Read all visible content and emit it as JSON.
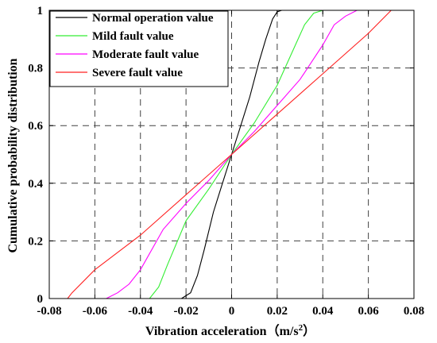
{
  "chart_data": {
    "type": "line",
    "title": "",
    "xlabel": "Vibration acceleration（m/s",
    "xlabel_sup": "2",
    "xlabel_close": "）",
    "ylabel": "Cumulative probability distribution",
    "xlim": [
      -0.08,
      0.08
    ],
    "ylim": [
      0,
      1
    ],
    "xticks": [
      -0.08,
      -0.06,
      -0.04,
      -0.02,
      0,
      0.02,
      0.04,
      0.06,
      0.08
    ],
    "xtick_labels": [
      "-0.08",
      "-0.06",
      "-0.04",
      "-0.02",
      "0",
      "0.02",
      "0.04",
      "0.06",
      "0.08"
    ],
    "yticks": [
      0,
      0.2,
      0.4,
      0.6,
      0.8,
      1
    ],
    "ytick_labels": [
      "0",
      "0.2",
      "0.4",
      "0.6",
      "0.8",
      "1"
    ],
    "grid": true,
    "legend_position": "top-left",
    "series": [
      {
        "name": "Normal operation value",
        "color": "#000000",
        "points": [
          [
            -0.022,
            0
          ],
          [
            -0.018,
            0.02
          ],
          [
            -0.015,
            0.08
          ],
          [
            -0.012,
            0.17
          ],
          [
            -0.008,
            0.3
          ],
          [
            -0.004,
            0.4
          ],
          [
            0,
            0.5
          ],
          [
            0.004,
            0.6
          ],
          [
            0.008,
            0.7
          ],
          [
            0.012,
            0.82
          ],
          [
            0.015,
            0.9
          ],
          [
            0.018,
            0.97
          ],
          [
            0.02,
            0.995
          ],
          [
            0.022,
            1
          ]
        ]
      },
      {
        "name": "Mild fault value",
        "color": "#33ee33",
        "points": [
          [
            -0.036,
            0
          ],
          [
            -0.032,
            0.04
          ],
          [
            -0.028,
            0.12
          ],
          [
            -0.02,
            0.27
          ],
          [
            -0.01,
            0.38
          ],
          [
            0,
            0.5
          ],
          [
            0.01,
            0.61
          ],
          [
            0.02,
            0.74
          ],
          [
            0.028,
            0.88
          ],
          [
            0.032,
            0.95
          ],
          [
            0.036,
            0.99
          ],
          [
            0.04,
            1
          ]
        ]
      },
      {
        "name": "Moderate fault value",
        "color": "#ff00ff",
        "points": [
          [
            -0.055,
            0
          ],
          [
            -0.05,
            0.02
          ],
          [
            -0.045,
            0.05
          ],
          [
            -0.04,
            0.1
          ],
          [
            -0.03,
            0.24
          ],
          [
            -0.02,
            0.33
          ],
          [
            -0.01,
            0.41
          ],
          [
            0,
            0.5
          ],
          [
            0.01,
            0.58
          ],
          [
            0.02,
            0.67
          ],
          [
            0.03,
            0.76
          ],
          [
            0.04,
            0.88
          ],
          [
            0.045,
            0.95
          ],
          [
            0.05,
            0.98
          ],
          [
            0.055,
            1
          ]
        ]
      },
      {
        "name": "Severe fault value",
        "color": "#ff2020",
        "points": [
          [
            -0.072,
            0
          ],
          [
            -0.07,
            0.02
          ],
          [
            -0.06,
            0.1
          ],
          [
            -0.04,
            0.22
          ],
          [
            -0.02,
            0.36
          ],
          [
            0,
            0.5
          ],
          [
            0.02,
            0.64
          ],
          [
            0.04,
            0.78
          ],
          [
            0.06,
            0.92
          ],
          [
            0.07,
            1
          ]
        ]
      }
    ]
  }
}
